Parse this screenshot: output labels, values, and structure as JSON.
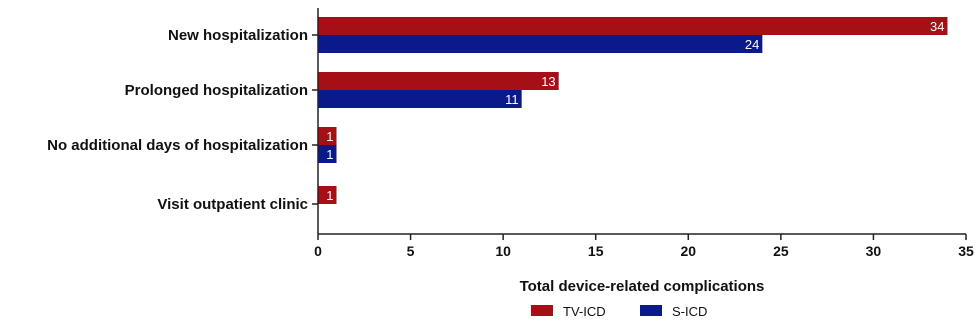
{
  "chart_data": {
    "type": "bar",
    "orientation": "horizontal",
    "categories": [
      "New hospitalization",
      "Prolonged hospitalization",
      "No additional days of hospitalization",
      "Visit outpatient clinic"
    ],
    "series": [
      {
        "name": "TV-ICD",
        "color": "#a50f15",
        "values": [
          34,
          13,
          1,
          1
        ]
      },
      {
        "name": "S-ICD",
        "color": "#0b1a8a",
        "values": [
          24,
          11,
          1,
          null
        ]
      }
    ],
    "xlabel": "Total device-related complications",
    "xlim": [
      0,
      35
    ],
    "xticks": [
      0,
      5,
      10,
      15,
      20,
      25,
      30,
      35
    ],
    "grid": false,
    "legend_position": "bottom-center"
  }
}
